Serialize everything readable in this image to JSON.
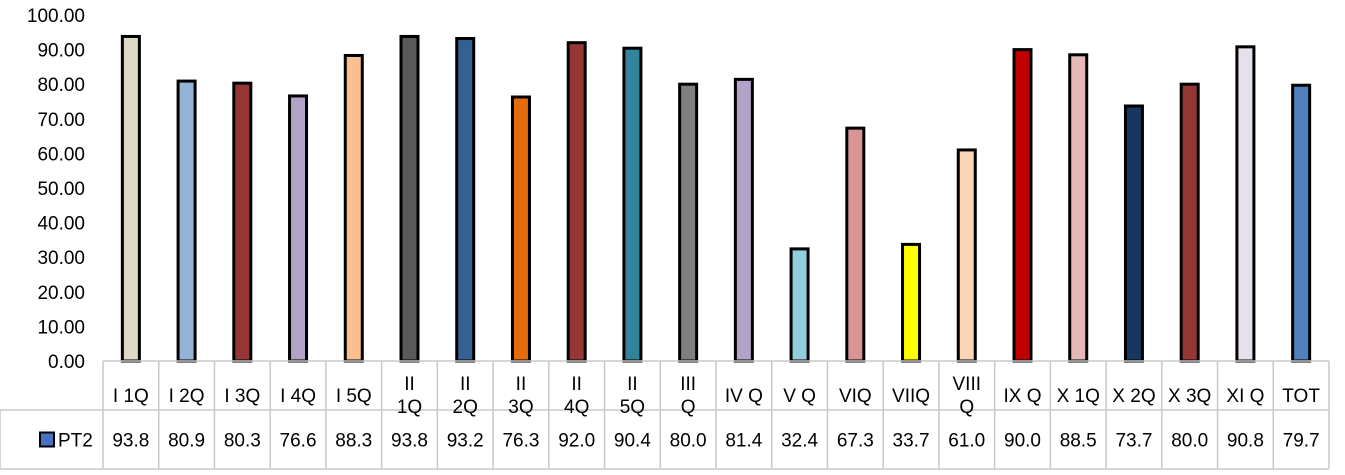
{
  "chart_data": {
    "type": "bar",
    "title": "",
    "xlabel": "",
    "ylabel": "",
    "ylim": [
      0,
      100
    ],
    "yticks": [
      "0.00",
      "10.00",
      "20.00",
      "30.00",
      "40.00",
      "50.00",
      "60.00",
      "70.00",
      "80.00",
      "90.00",
      "100.00"
    ],
    "categories": [
      "I 1Q",
      "I 2Q",
      "I 3Q",
      "I 4Q",
      "I 5Q",
      "II 1Q",
      "II 2Q",
      "II 3Q",
      "II 4Q",
      "II 5Q",
      "III Q",
      "IV Q",
      "V Q",
      "VIQ",
      "VIIQ",
      "VIII Q",
      "IX Q",
      "X 1Q",
      "X 2Q",
      "X 3Q",
      "XI Q",
      "TOT"
    ],
    "series": [
      {
        "name": "PT2",
        "values": [
          93.8,
          80.9,
          80.3,
          76.6,
          88.3,
          93.8,
          93.2,
          76.3,
          92.0,
          90.4,
          80.0,
          81.4,
          32.4,
          67.3,
          33.7,
          61.0,
          90.0,
          88.5,
          73.7,
          80.0,
          90.8,
          79.7
        ],
        "labels": [
          "93.8",
          "80.9",
          "80.3",
          "76.6",
          "88.3",
          "93.8",
          "93.2",
          "76.3",
          "92.0",
          "90.4",
          "80.0",
          "81.4",
          "32.4",
          "67.3",
          "33.7",
          "61.0",
          "90.0",
          "88.5",
          "73.7",
          "80.0",
          "90.8",
          "79.7"
        ],
        "legend_color": "#4472C4"
      }
    ],
    "bar_colors": [
      "#DDD9C4",
      "#95B3D7",
      "#953735",
      "#B3A2C7",
      "#FAC090",
      "#595959",
      "#366092",
      "#E46C0A",
      "#953735",
      "#31849B",
      "#7F7F7F",
      "#B3A2C7",
      "#92CDDC",
      "#D99594",
      "#FFFF00",
      "#FCD5B4",
      "#C00000",
      "#E6B9B8",
      "#17375E",
      "#953735",
      "#E6E0EC",
      "#4F81BD"
    ],
    "grid": false,
    "legend": "data-table"
  }
}
